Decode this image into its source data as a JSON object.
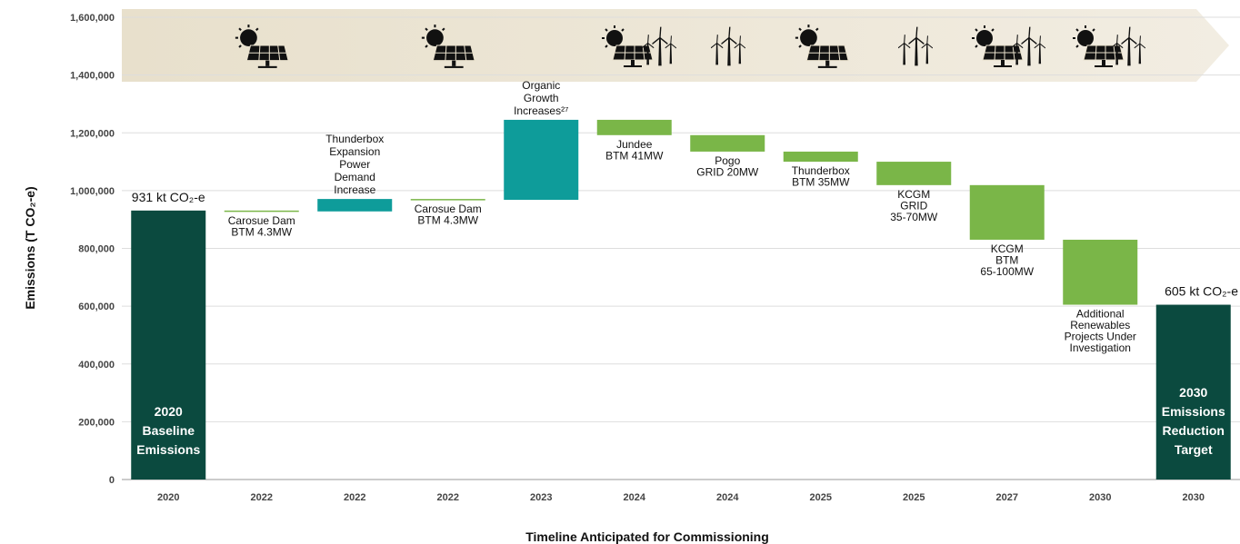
{
  "chart_data": {
    "type": "waterfall",
    "x_label": "Timeline Anticipated for Commissioning",
    "y_label": "Emissions (T CO₂-e)",
    "categories": [
      "2020",
      "2022",
      "2022",
      "2022",
      "2023",
      "2024",
      "2024",
      "2025",
      "2025",
      "2027",
      "2030",
      "2030"
    ],
    "labels": [
      [
        "2020",
        "Baseline",
        "Emissions"
      ],
      [
        "Carosue Dam",
        "BTM 4.3MW"
      ],
      [
        "Thunderbox",
        "Expansion",
        "Power",
        "Demand",
        "Increase"
      ],
      [
        "Carosue Dam",
        "BTM 4.3MW"
      ],
      [
        "Organic",
        "Growth",
        "Increases²⁷"
      ],
      [
        "Jundee",
        "BTM 41MW"
      ],
      [
        "Pogo",
        "GRID 20MW"
      ],
      [
        "Thunderbox",
        "BTM 35MW"
      ],
      [
        "KCGM",
        "GRID",
        "35-70MW"
      ],
      [
        "KCGM",
        "BTM",
        "65-100MW"
      ],
      [
        "Additional",
        "Renewables",
        "Projects Under",
        "Investigation"
      ],
      [
        "2030",
        "Emissions",
        "Reduction",
        "Target"
      ]
    ],
    "measures": [
      "total",
      "relative",
      "relative",
      "relative",
      "relative",
      "relative",
      "relative",
      "relative",
      "relative",
      "relative",
      "relative",
      "total"
    ],
    "values": [
      931000,
      -3000,
      43000,
      -3000,
      277000,
      -53000,
      -57000,
      -35000,
      -81000,
      -189000,
      -225000,
      605000
    ],
    "value_labels": [
      "931 kt CO₂-e",
      null,
      null,
      null,
      null,
      null,
      null,
      null,
      null,
      null,
      null,
      "605 kt CO₂-e"
    ],
    "colors": {
      "total": "#0b4a3f",
      "increase": "#0e9c9a",
      "decrease": "#7ab648"
    },
    "ylim": [
      0,
      1600000
    ],
    "yticks": [
      0,
      {
        "value": 200000,
        "label": "200,000"
      },
      {
        "value": 400000,
        "label": "400,000"
      },
      {
        "value": 600000,
        "label": "600,000"
      },
      {
        "value": 800000,
        "label": "800,000"
      },
      {
        "value": 1000000,
        "label": "1,000,000"
      },
      {
        "value": 1200000,
        "label": "1,200,000"
      },
      {
        "value": 1400000,
        "label": "1,400,000"
      },
      {
        "value": 1600000,
        "label": "1,600,000"
      }
    ],
    "grid": true
  }
}
